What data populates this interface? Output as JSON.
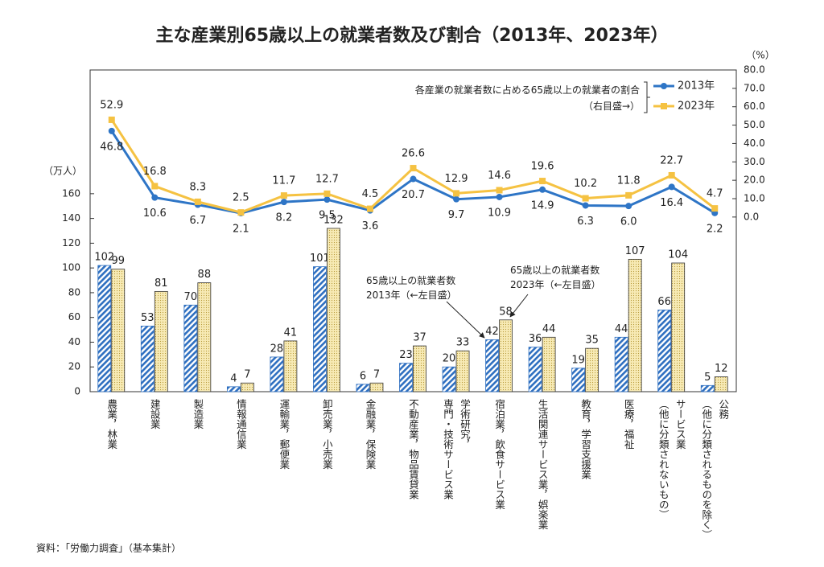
{
  "chart_data": {
    "type": "combo",
    "title": "主な産業別65歳以上の就業者数及び割合（2013年、2023年）",
    "ylabel": "（万人）",
    "y2label": "（%）",
    "source": "資料：「労働力調査」（基本集計）",
    "categories": [
      "農業，林業",
      "建設業",
      "製造業",
      "情報通信業",
      "運輸業，郵便業",
      "卸売業，小売業",
      "金融業，保険業",
      "不動産業，物品賃貸業",
      "学術研究，\n専門・技術サービス業",
      "宿泊業，飲食サービス業",
      "生活関連サービス業，娯楽業",
      "教育，学習支援業",
      "医療，福祉",
      "サービス業\n（他に分類されないもの）",
      "公務\n（他に分類されるものを除く）"
    ],
    "ylim": [
      0,
      260
    ],
    "yticks": [
      0,
      20,
      40,
      60,
      80,
      100,
      120,
      140,
      160
    ],
    "y2lim": [
      -95,
      80
    ],
    "y2ticks": [
      {
        "value": 0,
        "label": "0.0"
      },
      {
        "value": 10,
        "label": "10.0"
      },
      {
        "value": 20,
        "label": "20.0"
      },
      {
        "value": 30,
        "label": "30.0"
      },
      {
        "value": 40,
        "label": "40.0"
      },
      {
        "value": 50,
        "label": "50.0"
      },
      {
        "value": 60,
        "label": "60.0"
      },
      {
        "value": 70,
        "label": "70.0"
      },
      {
        "value": 80,
        "label": "80.0"
      }
    ],
    "series": [
      {
        "type": "bar",
        "color": "#2e6fc0",
        "values": [
          102,
          53,
          70,
          4,
          28,
          101,
          6,
          23,
          20,
          42,
          36,
          19,
          44,
          66,
          5
        ]
      },
      {
        "type": "bar",
        "color": "#f3e3a0",
        "values": [
          99,
          81,
          88,
          7,
          41,
          132,
          7,
          37,
          33,
          58,
          44,
          35,
          107,
          104,
          12
        ]
      },
      {
        "type": "line",
        "name": "2013年",
        "axis": "y2",
        "color": "#2e75c6",
        "values": [
          46.8,
          10.6,
          6.7,
          2.1,
          8.2,
          9.5,
          3.6,
          20.7,
          9.7,
          10.9,
          14.9,
          6.3,
          6.0,
          16.4,
          2.2
        ],
        "value_labels": [
          "46.8",
          "10.6",
          "6.7",
          "2.1",
          "8.2",
          "9.5",
          "3.6",
          "20.7",
          "9.7",
          "10.9",
          "14.9",
          "6.3",
          "6.0",
          "16.4",
          "2.2"
        ]
      },
      {
        "type": "line",
        "name": "2023年",
        "axis": "y2",
        "color": "#f5c242",
        "values": [
          52.9,
          16.8,
          8.3,
          2.5,
          11.7,
          12.7,
          4.5,
          26.6,
          12.9,
          14.6,
          19.6,
          10.2,
          11.8,
          22.7,
          4.7
        ]
      }
    ],
    "legend_note": "各産業の就業者数に占める65歳以上の就業者の割合\n（右目盛→）",
    "annotations": [
      "65歳以上の就業者数\n2013年（←左目盛）",
      "65歳以上の就業者数\n2023年（←左目盛）"
    ]
  }
}
